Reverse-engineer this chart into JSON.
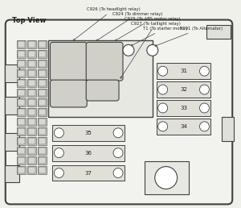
{
  "title": "Top View",
  "bg_color": "#f0f0eb",
  "line_color": "#404040",
  "text_color": "#202020",
  "ann_labels": [
    "C926 (To headlight relay)",
    "C924 (To dimmer relay)",
    "C925 (To ABS motor relay)",
    "C927 (To taillight relay)",
    "T1 (To starter motor)",
    "T101 (To Alternator)"
  ],
  "fuse_right_labels": [
    "31",
    "32",
    "33",
    "34"
  ],
  "fuse_bot_labels": [
    "35",
    "36",
    "37"
  ]
}
